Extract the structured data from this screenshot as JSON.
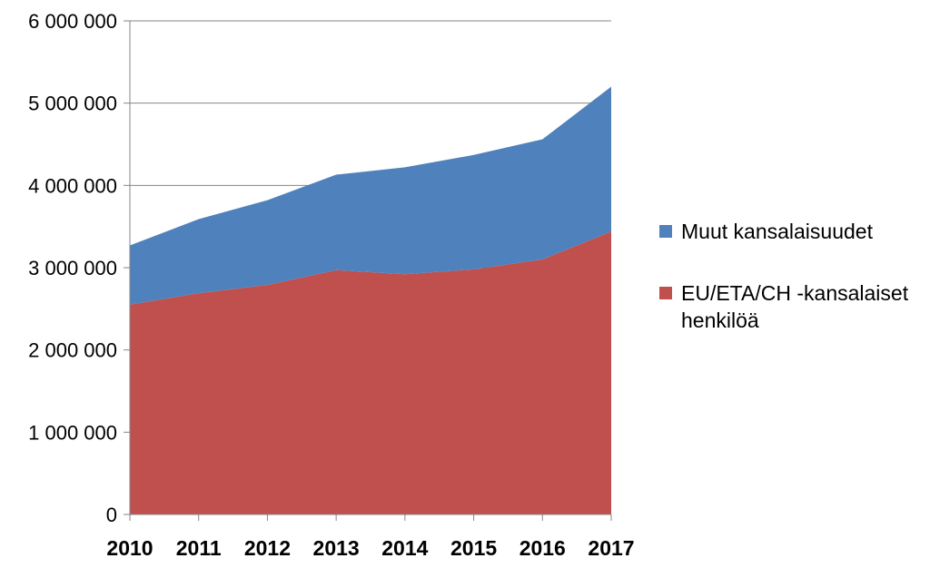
{
  "chart_data": {
    "type": "area",
    "stacked": true,
    "categories": [
      "2010",
      "2011",
      "2012",
      "2013",
      "2014",
      "2015",
      "2016",
      "2017"
    ],
    "series": [
      {
        "name": "EU/ETA/CH -kansalaiset henkilöä",
        "color": "#c0504d",
        "values": [
          2550000,
          2690000,
          2790000,
          2970000,
          2920000,
          2980000,
          3100000,
          3440000
        ]
      },
      {
        "name": "Muut kansalaisuudet",
        "color": "#4f81bd",
        "values": [
          720000,
          900000,
          1030000,
          1160000,
          1300000,
          1390000,
          1460000,
          1760000
        ]
      }
    ],
    "ylim": [
      0,
      6000000
    ],
    "yticks": [
      0,
      1000000,
      2000000,
      3000000,
      4000000,
      5000000,
      6000000
    ],
    "ytick_labels": [
      "0",
      "1 000 000",
      "2 000 000",
      "3 000 000",
      "4 000 000",
      "5 000 000",
      "6 000 000"
    ],
    "grid": "horizontal",
    "legend_position": "right"
  },
  "legend": {
    "items": [
      {
        "label": "Muut kansalaisuudet",
        "color": "#4f81bd"
      },
      {
        "label": "EU/ETA/CH -kansalaiset henkilöä",
        "color": "#c0504d"
      }
    ]
  }
}
